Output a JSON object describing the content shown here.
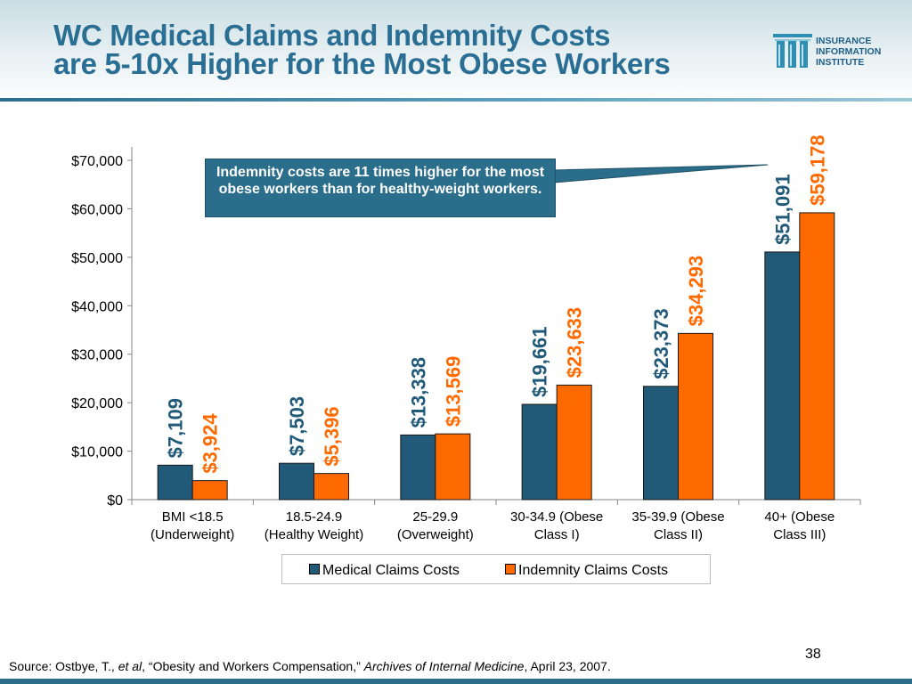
{
  "title_line1": "WC Medical Claims and Indemnity Costs",
  "title_line2": "are 5-10x Higher for the Most Obese Workers",
  "logo": {
    "line1": "INSURANCE",
    "line2": "INFORMATION",
    "line3": "INSTITUTE"
  },
  "callout": "Indemnity costs are 11 times higher for the most obese workers than for healthy-weight workers.",
  "page_number": "38",
  "source": {
    "prefix": "Source: Ostbye, T., ",
    "etal": "et al",
    "mid": ", “Obesity and Workers Compensation,” ",
    "journal": "Archives of Internal Medicine",
    "suffix": ", April 23, 2007."
  },
  "colors": {
    "medical": "#215a78",
    "indemnity": "#ff6a00",
    "title": "#2a6f93"
  },
  "chart_data": {
    "type": "bar",
    "categories": [
      [
        "BMI <18.5",
        "(Underweight)"
      ],
      [
        "18.5-24.9",
        "(Healthy Weight)"
      ],
      [
        "25-29.9",
        "(Overweight)"
      ],
      [
        "30-34.9 (Obese",
        "Class I)"
      ],
      [
        "35-39.9 (Obese",
        "Class II)"
      ],
      [
        "40+ (Obese",
        "Class III)"
      ]
    ],
    "series": [
      {
        "name": "Medical Claims Costs",
        "values": [
          7109,
          7503,
          13338,
          19661,
          23373,
          51091
        ],
        "labels": [
          "$7,109",
          "$7,503",
          "$13,338",
          "$19,661",
          "$23,373",
          "$51,091"
        ]
      },
      {
        "name": "Indemnity Claims Costs",
        "values": [
          3924,
          5396,
          13569,
          23633,
          34293,
          59178
        ],
        "labels": [
          "$3,924",
          "$5,396",
          "$13,569",
          "$23,633",
          "$34,293",
          "$59,178"
        ]
      }
    ],
    "yticks": [
      "$0",
      "$10,000",
      "$20,000",
      "$30,000",
      "$40,000",
      "$50,000",
      "$60,000",
      "$70,000"
    ],
    "ylim": [
      0,
      70000
    ],
    "grid": false,
    "legend": "bottom"
  }
}
